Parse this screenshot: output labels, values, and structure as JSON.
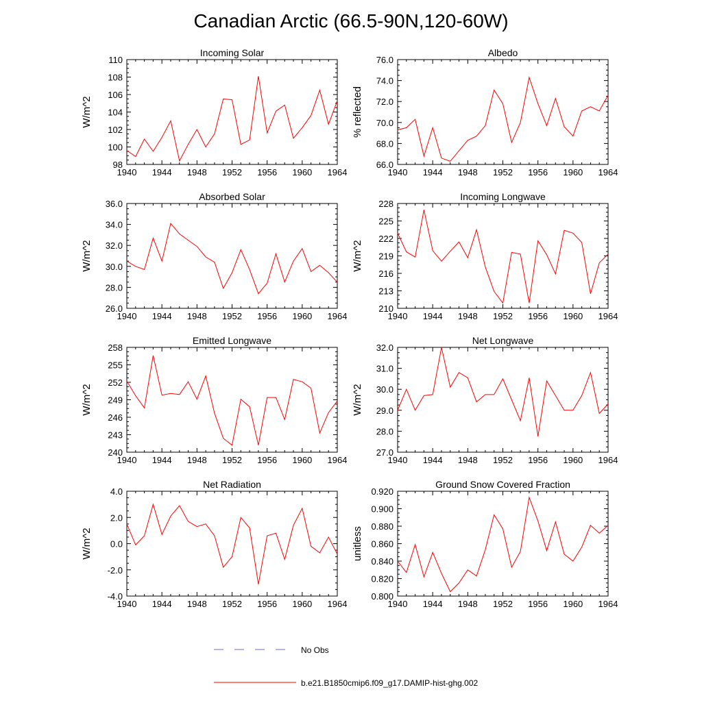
{
  "title": "Canadian Arctic (66.5-90N,120-60W)",
  "colors": {
    "model": "#ff0000",
    "obs": "#6b6bd6",
    "axis": "#000000"
  },
  "legend": {
    "obs_label": "No Obs",
    "model_label": "b.e21.B1850cmip6.f09_g17.DAMIP-hist-ghg.002"
  },
  "chart_data": [
    {
      "type": "line",
      "title": "Incoming Solar",
      "xlabel": "",
      "ylabel": "W/m^2",
      "xlim": [
        1940,
        1964
      ],
      "ylim": [
        98,
        110
      ],
      "xticks": [
        "1940",
        "1944",
        "1948",
        "1952",
        "1956",
        "1960",
        "1964"
      ],
      "yticks": [
        "98",
        "100",
        "102",
        "104",
        "106",
        "108",
        "110"
      ],
      "series": [
        {
          "name": "b.e21.B1850cmip6.f09_g17.DAMIP-hist-ghg.002",
          "x": [
            1940,
            1941,
            1942,
            1943,
            1944,
            1945,
            1946,
            1947,
            1948,
            1949,
            1950,
            1951,
            1952,
            1953,
            1954,
            1955,
            1956,
            1957,
            1958,
            1959,
            1960,
            1961,
            1962,
            1963,
            1964
          ],
          "y": [
            99.6,
            98.9,
            100.9,
            99.5,
            101.1,
            103.0,
            98.4,
            100.3,
            102.0,
            100.0,
            101.5,
            105.5,
            105.4,
            100.3,
            100.8,
            108.1,
            101.6,
            104.1,
            104.8,
            101.0,
            102.2,
            103.6,
            106.5,
            102.6,
            105.3
          ]
        }
      ]
    },
    {
      "type": "line",
      "title": "Albedo",
      "xlabel": "",
      "ylabel": "% reflected",
      "xlim": [
        1940,
        1964
      ],
      "ylim": [
        66.0,
        76.0
      ],
      "xticks": [
        "1940",
        "1944",
        "1948",
        "1952",
        "1956",
        "1960",
        "1964"
      ],
      "yticks": [
        "66.0",
        "68.0",
        "70.0",
        "72.0",
        "74.0",
        "76.0"
      ],
      "series": [
        {
          "name": "b.e21.B1850cmip6.f09_g17.DAMIP-hist-ghg.002",
          "x": [
            1940,
            1941,
            1942,
            1943,
            1944,
            1945,
            1946,
            1947,
            1948,
            1949,
            1950,
            1951,
            1952,
            1953,
            1954,
            1955,
            1956,
            1957,
            1958,
            1959,
            1960,
            1961,
            1962,
            1963,
            1964
          ],
          "y": [
            69.3,
            69.5,
            70.3,
            66.8,
            69.5,
            66.6,
            66.3,
            67.3,
            68.3,
            68.7,
            69.7,
            73.1,
            71.8,
            68.1,
            70.0,
            74.3,
            71.8,
            69.7,
            72.3,
            69.6,
            68.7,
            71.1,
            71.5,
            71.1,
            72.6
          ]
        }
      ]
    },
    {
      "type": "line",
      "title": "Absorbed Solar",
      "xlabel": "",
      "ylabel": "W/m^2",
      "xlim": [
        1940,
        1964
      ],
      "ylim": [
        26.0,
        36.0
      ],
      "xticks": [
        "1940",
        "1944",
        "1948",
        "1952",
        "1956",
        "1960",
        "1964"
      ],
      "yticks": [
        "26.0",
        "28.0",
        "30.0",
        "32.0",
        "34.0",
        "36.0"
      ],
      "series": [
        {
          "name": "b.e21.B1850cmip6.f09_g17.DAMIP-hist-ghg.002",
          "x": [
            1940,
            1941,
            1942,
            1943,
            1944,
            1945,
            1946,
            1947,
            1948,
            1949,
            1950,
            1951,
            1952,
            1953,
            1954,
            1955,
            1956,
            1957,
            1958,
            1959,
            1960,
            1961,
            1962,
            1963,
            1964
          ],
          "y": [
            30.5,
            30.0,
            29.7,
            32.7,
            30.5,
            34.1,
            33.1,
            32.5,
            31.9,
            30.9,
            30.4,
            27.9,
            29.4,
            31.6,
            29.7,
            27.4,
            28.4,
            31.2,
            28.5,
            30.5,
            31.7,
            29.5,
            30.1,
            29.4,
            28.5
          ]
        }
      ]
    },
    {
      "type": "line",
      "title": "Incoming Longwave",
      "xlabel": "",
      "ylabel": "W/m^2",
      "xlim": [
        1940,
        1964
      ],
      "ylim": [
        210,
        228
      ],
      "xticks": [
        "1940",
        "1944",
        "1948",
        "1952",
        "1956",
        "1960",
        "1964"
      ],
      "yticks": [
        "210",
        "213",
        "216",
        "219",
        "222",
        "225",
        "228"
      ],
      "series": [
        {
          "name": "b.e21.B1850cmip6.f09_g17.DAMIP-hist-ghg.002",
          "x": [
            1940,
            1941,
            1942,
            1943,
            1944,
            1945,
            1946,
            1947,
            1948,
            1949,
            1950,
            1951,
            1952,
            1953,
            1954,
            1955,
            1956,
            1957,
            1958,
            1959,
            1960,
            1961,
            1962,
            1963,
            1964
          ],
          "y": [
            222.9,
            219.7,
            218.8,
            226.9,
            219.9,
            218.1,
            219.8,
            221.4,
            218.7,
            223.5,
            217.1,
            212.9,
            210.9,
            219.6,
            219.3,
            210.9,
            221.6,
            219.2,
            215.9,
            223.4,
            222.9,
            221.3,
            212.5,
            217.8,
            219.3
          ]
        }
      ]
    },
    {
      "type": "line",
      "title": "Emitted Longwave",
      "xlabel": "",
      "ylabel": "W/m^2",
      "xlim": [
        1940,
        1964
      ],
      "ylim": [
        240,
        258
      ],
      "xticks": [
        "1940",
        "1944",
        "1948",
        "1952",
        "1956",
        "1960",
        "1964"
      ],
      "yticks": [
        "240",
        "243",
        "246",
        "249",
        "252",
        "255",
        "258"
      ],
      "series": [
        {
          "name": "b.e21.B1850cmip6.f09_g17.DAMIP-hist-ghg.002",
          "x": [
            1940,
            1941,
            1942,
            1943,
            1944,
            1945,
            1946,
            1947,
            1948,
            1949,
            1950,
            1951,
            1952,
            1953,
            1954,
            1955,
            1956,
            1957,
            1958,
            1959,
            1960,
            1961,
            1962,
            1963,
            1964
          ],
          "y": [
            252.2,
            249.7,
            247.6,
            256.6,
            249.8,
            250.1,
            249.9,
            252.1,
            249.1,
            253.1,
            246.7,
            242.4,
            241.2,
            249.1,
            247.8,
            241.2,
            249.4,
            249.4,
            245.6,
            252.5,
            252.1,
            251.0,
            243.3,
            246.8,
            248.8
          ]
        }
      ]
    },
    {
      "type": "line",
      "title": "Net Longwave",
      "xlabel": "",
      "ylabel": "W/m^2",
      "xlim": [
        1940,
        1964
      ],
      "ylim": [
        27.0,
        32.0
      ],
      "xticks": [
        "1940",
        "1944",
        "1948",
        "1952",
        "1956",
        "1960",
        "1964"
      ],
      "yticks": [
        "27.0",
        "28.0",
        "29.0",
        "30.0",
        "31.0",
        "32.0"
      ],
      "series": [
        {
          "name": "b.e21.B1850cmip6.f09_g17.DAMIP-hist-ghg.002",
          "x": [
            1940,
            1941,
            1942,
            1943,
            1944,
            1945,
            1946,
            1947,
            1948,
            1949,
            1950,
            1951,
            1952,
            1953,
            1954,
            1955,
            1956,
            1957,
            1958,
            1959,
            1960,
            1961,
            1962,
            1963,
            1964
          ],
          "y": [
            29.0,
            30.0,
            29.0,
            29.7,
            29.75,
            32.0,
            30.1,
            30.8,
            30.55,
            29.4,
            29.75,
            29.75,
            30.5,
            29.5,
            28.5,
            30.55,
            27.75,
            30.4,
            29.7,
            29.0,
            29.0,
            29.7,
            30.8,
            28.85,
            29.3
          ]
        }
      ]
    },
    {
      "type": "line",
      "title": "Net Radiation",
      "xlabel": "",
      "ylabel": "W/m^2",
      "xlim": [
        1940,
        1964
      ],
      "ylim": [
        -4.0,
        4.0
      ],
      "xticks": [
        "1940",
        "1944",
        "1948",
        "1952",
        "1956",
        "1960",
        "1964"
      ],
      "yticks": [
        "-4.0",
        "-2.0",
        "0.0",
        "2.0",
        "4.0"
      ],
      "series": [
        {
          "name": "b.e21.B1850cmip6.f09_g17.DAMIP-hist-ghg.002",
          "x": [
            1940,
            1941,
            1942,
            1943,
            1944,
            1945,
            1946,
            1947,
            1948,
            1949,
            1950,
            1951,
            1952,
            1953,
            1954,
            1955,
            1956,
            1957,
            1958,
            1959,
            1960,
            1961,
            1962,
            1963,
            1964
          ],
          "y": [
            1.5,
            -0.1,
            0.6,
            3.0,
            0.7,
            2.1,
            2.9,
            1.7,
            1.3,
            1.5,
            0.6,
            -1.8,
            -1.0,
            2.0,
            1.2,
            -3.1,
            0.6,
            0.8,
            -1.2,
            1.4,
            2.7,
            -0.2,
            -0.7,
            0.5,
            -0.8
          ]
        }
      ]
    },
    {
      "type": "line",
      "title": "Ground Snow Covered Fraction",
      "xlabel": "",
      "ylabel": "unitless",
      "xlim": [
        1940,
        1964
      ],
      "ylim": [
        0.8,
        0.92
      ],
      "xticks": [
        "1940",
        "1944",
        "1948",
        "1952",
        "1956",
        "1960",
        "1964"
      ],
      "yticks": [
        "0.800",
        "0.820",
        "0.840",
        "0.860",
        "0.880",
        "0.900",
        "0.920"
      ],
      "series": [
        {
          "name": "b.e21.B1850cmip6.f09_g17.DAMIP-hist-ghg.002",
          "x": [
            1940,
            1941,
            1942,
            1943,
            1944,
            1945,
            1946,
            1947,
            1948,
            1949,
            1950,
            1951,
            1952,
            1953,
            1954,
            1955,
            1956,
            1957,
            1958,
            1959,
            1960,
            1961,
            1962,
            1963,
            1964
          ],
          "y": [
            0.84,
            0.827,
            0.859,
            0.822,
            0.85,
            0.826,
            0.805,
            0.815,
            0.83,
            0.823,
            0.853,
            0.893,
            0.877,
            0.833,
            0.851,
            0.913,
            0.886,
            0.852,
            0.885,
            0.848,
            0.84,
            0.856,
            0.881,
            0.872,
            0.881
          ]
        }
      ]
    }
  ]
}
